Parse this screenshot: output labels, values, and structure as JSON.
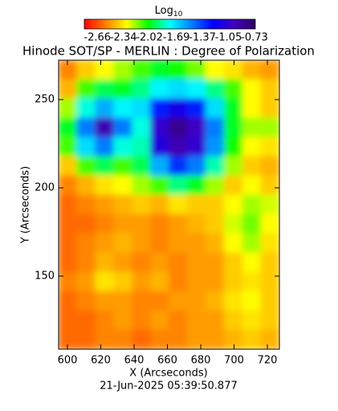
{
  "chart_data": {
    "type": "heatmap",
    "title": "Hinode SOT/SP - MERLIN : Degree of Polarization",
    "xlabel": "X (Arcseconds)",
    "ylabel": "Y (Arcseconds)",
    "footer": "21-Jun-2025 05:39:50.877",
    "xlim": [
      594.7,
      727.2
    ],
    "ylim": [
      108.6,
      272.3
    ],
    "xticks": [
      600,
      620,
      640,
      660,
      680,
      700,
      720
    ],
    "yticks": [
      150,
      200,
      250
    ],
    "colorbar": {
      "label": "Log",
      "label_sub": "10",
      "clim": [
        -2.82,
        -0.72
      ],
      "ticks": [
        -2.66,
        -2.34,
        -2.02,
        -1.69,
        -1.37,
        -1.05,
        -0.73
      ],
      "colormap": [
        "#ff0000",
        "#ff8000",
        "#ffff00",
        "#00ff00",
        "#00ffff",
        "#0080ff",
        "#0000ff",
        "#4000c0",
        "#300060"
      ]
    },
    "values": [
      [
        -2.55,
        -2.4,
        -2.3,
        -2.2,
        -2.1,
        -2.0,
        -2.05,
        -2.15,
        -2.3,
        -2.35,
        -2.45,
        -2.5
      ],
      [
        -2.45,
        -2.1,
        -1.95,
        -2.0,
        -1.9,
        -1.75,
        -1.7,
        -1.75,
        -1.9,
        -2.1,
        -2.3,
        -2.4
      ],
      [
        -2.2,
        -1.8,
        -1.6,
        -1.75,
        -1.7,
        -1.3,
        -1.15,
        -1.3,
        -1.7,
        -2.0,
        -2.3,
        -2.4
      ],
      [
        -2.0,
        -1.5,
        -0.95,
        -1.5,
        -1.8,
        -1.05,
        -0.85,
        -1.0,
        -1.5,
        -2.0,
        -2.2,
        -2.2
      ],
      [
        -2.1,
        -1.7,
        -1.5,
        -1.8,
        -1.85,
        -1.1,
        -0.95,
        -1.05,
        -1.55,
        -2.05,
        -2.3,
        -2.35
      ],
      [
        -2.4,
        -2.1,
        -1.95,
        -2.1,
        -1.95,
        -1.6,
        -1.35,
        -1.5,
        -1.85,
        -2.2,
        -2.4,
        -2.45
      ],
      [
        -2.55,
        -2.45,
        -2.35,
        -2.3,
        -2.2,
        -2.1,
        -1.9,
        -2.0,
        -2.2,
        -2.4,
        -2.3,
        -2.4
      ],
      [
        -2.6,
        -2.55,
        -2.5,
        -2.45,
        -2.4,
        -2.45,
        -2.35,
        -2.4,
        -2.4,
        -2.3,
        -2.2,
        -2.25
      ],
      [
        -2.6,
        -2.6,
        -2.55,
        -2.5,
        -2.5,
        -2.55,
        -2.5,
        -2.45,
        -2.4,
        -2.25,
        -2.15,
        -2.3
      ],
      [
        -2.6,
        -2.55,
        -2.5,
        -2.45,
        -2.5,
        -2.55,
        -2.5,
        -2.5,
        -2.45,
        -2.3,
        -2.2,
        -2.35
      ],
      [
        -2.6,
        -2.55,
        -2.45,
        -2.5,
        -2.55,
        -2.5,
        -2.55,
        -2.5,
        -2.5,
        -2.4,
        -2.3,
        -2.4
      ],
      [
        -2.55,
        -2.5,
        -2.35,
        -2.4,
        -2.5,
        -2.45,
        -2.55,
        -2.5,
        -2.5,
        -2.4,
        -2.35,
        -2.4
      ],
      [
        -2.6,
        -2.55,
        -2.5,
        -2.5,
        -2.55,
        -2.55,
        -2.5,
        -2.5,
        -2.45,
        -2.35,
        -2.3,
        -2.4
      ],
      [
        -2.6,
        -2.6,
        -2.55,
        -2.5,
        -2.55,
        -2.5,
        -2.55,
        -2.5,
        -2.5,
        -2.4,
        -2.35,
        -2.4
      ],
      [
        -2.6,
        -2.6,
        -2.55,
        -2.55,
        -2.6,
        -2.55,
        -2.55,
        -2.5,
        -2.5,
        -2.45,
        -2.4,
        -2.45
      ]
    ]
  }
}
